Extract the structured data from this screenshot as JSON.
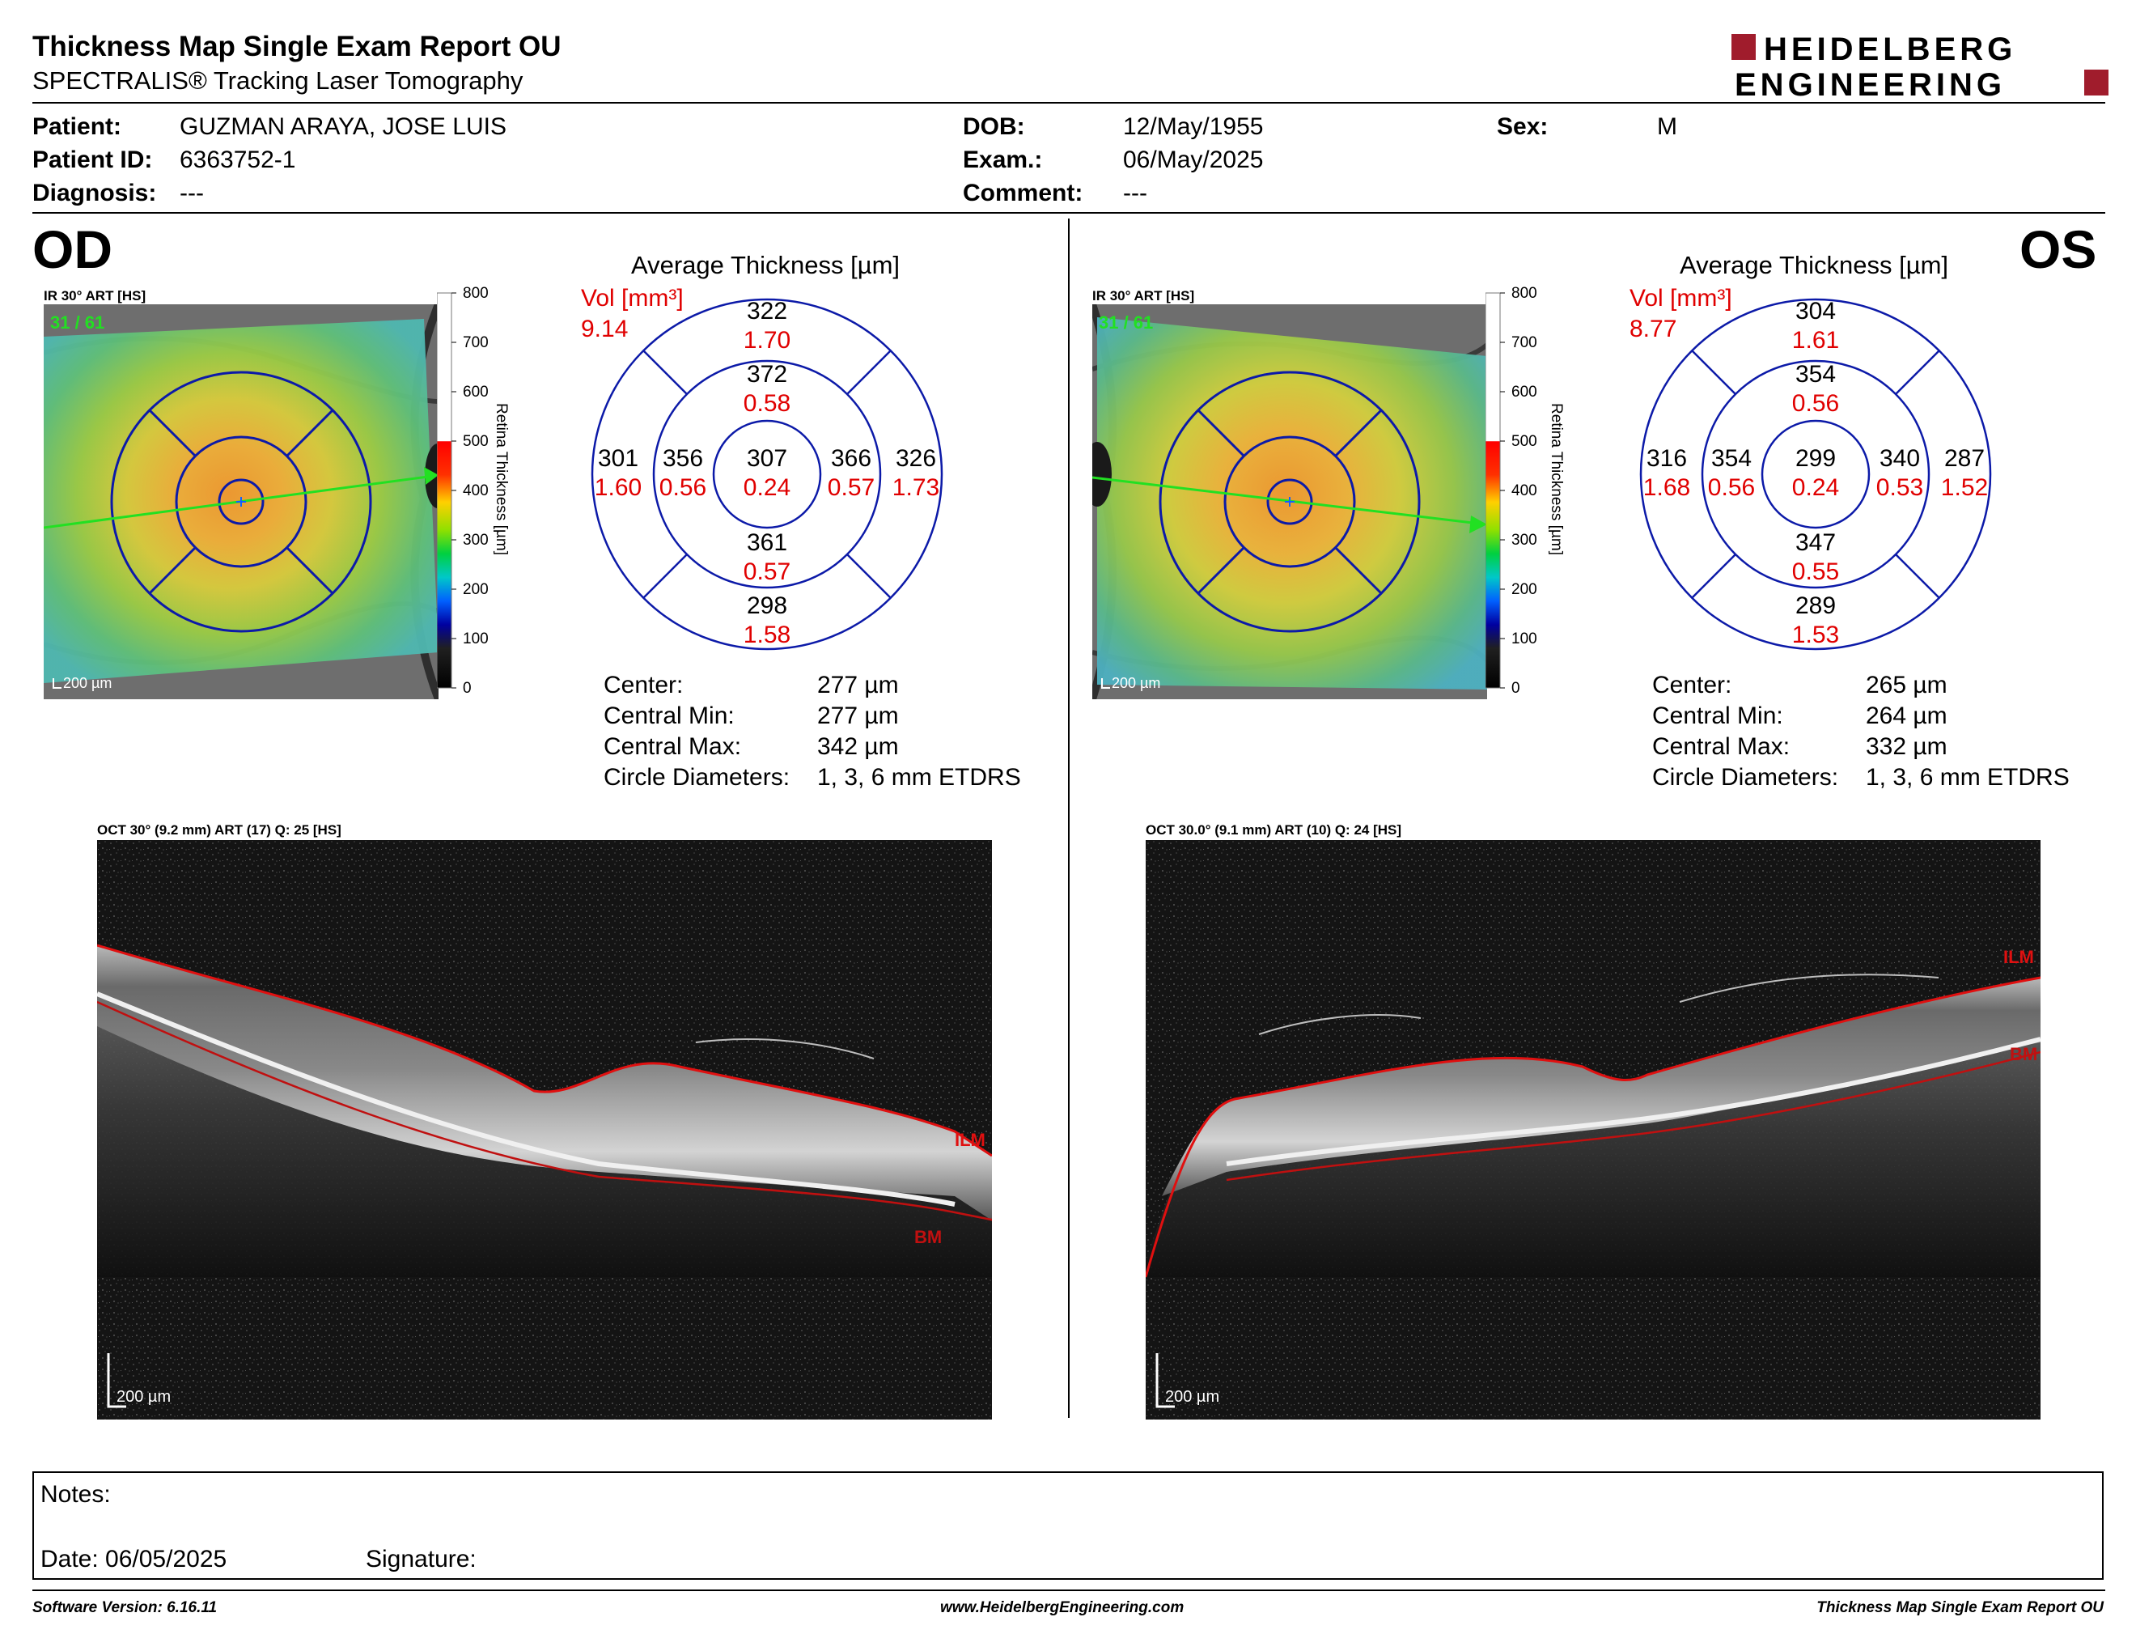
{
  "report": {
    "title": "Thickness Map Single Exam Report OU",
    "subtitle": "SPECTRALIS® Tracking Laser Tomography",
    "logo_line1": "HEIDELBERG",
    "logo_line2": "ENGINEERING"
  },
  "patient": {
    "patient_label": "Patient:",
    "patient_value": "GUZMAN ARAYA, JOSE LUIS",
    "id_label": "Patient ID:",
    "id_value": "6363752-1",
    "diagnosis_label": "Diagnosis:",
    "diagnosis_value": "---",
    "dob_label": "DOB:",
    "dob_value": "12/May/1955",
    "exam_label": "Exam.:",
    "exam_value": "06/May/2025",
    "comment_label": "Comment:",
    "comment_value": "---",
    "sex_label": "Sex:",
    "sex_value": "M"
  },
  "scale": {
    "ticks": [
      "800",
      "700",
      "600",
      "500",
      "400",
      "300",
      "200",
      "100",
      "0"
    ],
    "label": "Retina Thickness [µm]"
  },
  "od": {
    "eye_label": "OD",
    "ir_caption": "IR 30° ART [HS]",
    "ir_count": "31 / 61",
    "ir_scale": "200 µm",
    "avg_title": "Average Thickness [µm]",
    "vol_label": "Vol [mm³]",
    "vol_total": "9.14",
    "sectors": {
      "outer_superior": {
        "t": "322",
        "v": "1.70"
      },
      "inner_superior": {
        "t": "372",
        "v": "0.58"
      },
      "outer_left": {
        "t": "301",
        "v": "1.60"
      },
      "inner_left": {
        "t": "356",
        "v": "0.56"
      },
      "center": {
        "t": "307",
        "v": "0.24"
      },
      "inner_right": {
        "t": "366",
        "v": "0.57"
      },
      "outer_right": {
        "t": "326",
        "v": "1.73"
      },
      "inner_inferior": {
        "t": "361",
        "v": "0.57"
      },
      "outer_inferior": {
        "t": "298",
        "v": "1.58"
      }
    },
    "stats": {
      "center_label": "Center:",
      "center_value": "277 µm",
      "min_label": "Central Min:",
      "min_value": "277 µm",
      "max_label": "Central Max:",
      "max_value": "342 µm",
      "diam_label": "Circle Diameters:",
      "diam_value": "1, 3, 6 mm ETDRS"
    },
    "oct_caption": "OCT 30° (9.2 mm) ART (17) Q: 25 [HS]",
    "oct_scale": "200 µm",
    "ilm_label": "ILM",
    "bm_label": "BM"
  },
  "os": {
    "eye_label": "OS",
    "ir_caption": "IR 30° ART [HS]",
    "ir_count": "31 / 61",
    "ir_scale": "200 µm",
    "avg_title": "Average Thickness [µm]",
    "vol_label": "Vol [mm³]",
    "vol_total": "8.77",
    "sectors": {
      "outer_superior": {
        "t": "304",
        "v": "1.61"
      },
      "inner_superior": {
        "t": "354",
        "v": "0.56"
      },
      "outer_left": {
        "t": "316",
        "v": "1.68"
      },
      "inner_left": {
        "t": "354",
        "v": "0.56"
      },
      "center": {
        "t": "299",
        "v": "0.24"
      },
      "inner_right": {
        "t": "340",
        "v": "0.53"
      },
      "outer_right": {
        "t": "287",
        "v": "1.52"
      },
      "inner_inferior": {
        "t": "347",
        "v": "0.55"
      },
      "outer_inferior": {
        "t": "289",
        "v": "1.53"
      }
    },
    "stats": {
      "center_label": "Center:",
      "center_value": "265 µm",
      "min_label": "Central Min:",
      "min_value": "264 µm",
      "max_label": "Central Max:",
      "max_value": "332 µm",
      "diam_label": "Circle Diameters:",
      "diam_value": "1, 3, 6 mm ETDRS"
    },
    "oct_caption": "OCT 30.0° (9.1 mm) ART (10) Q: 24 [HS]",
    "oct_scale": "200 µm",
    "ilm_label": "ILM",
    "bm_label": "BM"
  },
  "notes": {
    "notes_label": "Notes:",
    "date_label": "Date: 06/05/2025",
    "signature_label": "Signature:"
  },
  "footer": {
    "software": "Software Version: 6.16.11",
    "website": "www.HeidelbergEngineering.com",
    "report_name": "Thickness Map Single Exam Report OU"
  }
}
